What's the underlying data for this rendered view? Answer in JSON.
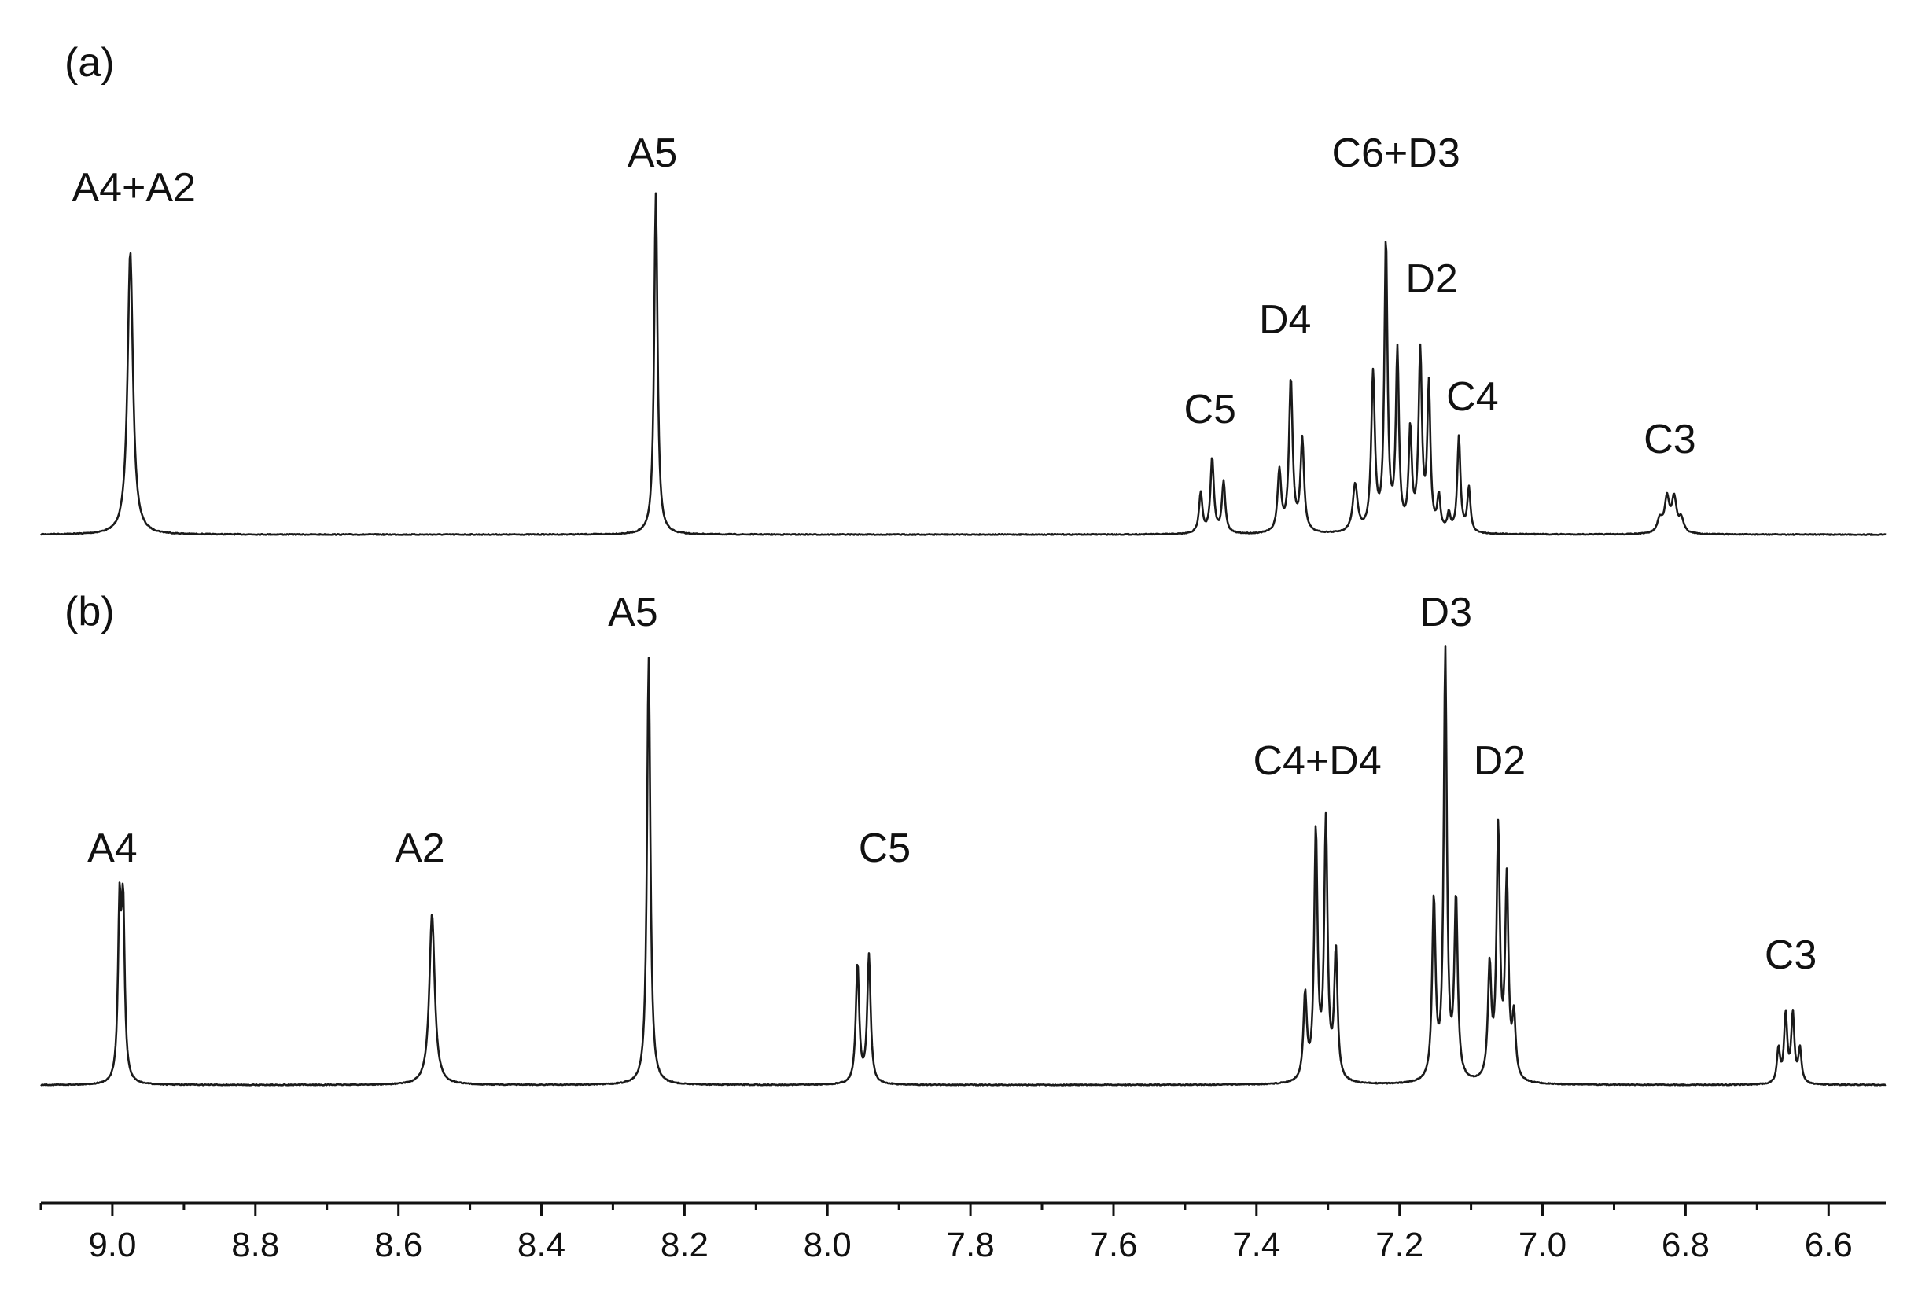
{
  "chart_data": {
    "type": "line",
    "x_unit": "ppm",
    "x_range": [
      9.1,
      6.52
    ],
    "x_reversed": true,
    "grid": false,
    "x_ticks": [
      9.0,
      8.8,
      8.6,
      8.4,
      8.2,
      8.0,
      7.8,
      7.6,
      7.4,
      7.2,
      7.0,
      6.8,
      6.6
    ],
    "x_tick_labels": [
      "9.0",
      "8.8",
      "8.6",
      "8.4",
      "8.2",
      "8.0",
      "7.8",
      "7.6",
      "7.4",
      "7.2",
      "7.0",
      "6.8",
      "6.6"
    ],
    "panels": [
      {
        "tag": "(a)",
        "peaks": [
          {
            "ppm": 8.975,
            "intensity": 0.83,
            "width": 0.0045
          },
          {
            "ppm": 8.24,
            "intensity": 1.0,
            "width": 0.0028
          },
          {
            "ppm": 7.478,
            "intensity": 0.12,
            "width": 0.0028
          },
          {
            "ppm": 7.462,
            "intensity": 0.22,
            "width": 0.0028
          },
          {
            "ppm": 7.446,
            "intensity": 0.15,
            "width": 0.0028
          },
          {
            "ppm": 7.368,
            "intensity": 0.18,
            "width": 0.003
          },
          {
            "ppm": 7.352,
            "intensity": 0.45,
            "width": 0.003
          },
          {
            "ppm": 7.336,
            "intensity": 0.27,
            "width": 0.003
          },
          {
            "ppm": 7.262,
            "intensity": 0.14,
            "width": 0.004
          },
          {
            "ppm": 7.237,
            "intensity": 0.46,
            "width": 0.003
          },
          {
            "ppm": 7.219,
            "intensity": 0.85,
            "width": 0.0026
          },
          {
            "ppm": 7.203,
            "intensity": 0.52,
            "width": 0.0026
          },
          {
            "ppm": 7.185,
            "intensity": 0.29,
            "width": 0.0026
          },
          {
            "ppm": 7.171,
            "intensity": 0.52,
            "width": 0.0028
          },
          {
            "ppm": 7.159,
            "intensity": 0.42,
            "width": 0.0026
          },
          {
            "ppm": 7.145,
            "intensity": 0.1,
            "width": 0.0026
          },
          {
            "ppm": 7.131,
            "intensity": 0.05,
            "width": 0.0026
          },
          {
            "ppm": 7.117,
            "intensity": 0.28,
            "width": 0.0026
          },
          {
            "ppm": 7.103,
            "intensity": 0.13,
            "width": 0.0026
          },
          {
            "ppm": 6.836,
            "intensity": 0.04,
            "width": 0.004
          },
          {
            "ppm": 6.826,
            "intensity": 0.1,
            "width": 0.004
          },
          {
            "ppm": 6.816,
            "intensity": 0.1,
            "width": 0.004
          },
          {
            "ppm": 6.806,
            "intensity": 0.04,
            "width": 0.004
          }
        ],
        "labels": [
          {
            "text": "A4+A2",
            "ppm": 8.97
          },
          {
            "text": "A5",
            "ppm": 8.245
          },
          {
            "text": "C6+D3",
            "ppm": 7.205
          },
          {
            "text": "D4",
            "ppm": 7.36
          },
          {
            "text": "D2",
            "ppm": 7.155
          },
          {
            "text": "C5",
            "ppm": 7.465
          },
          {
            "text": "C4",
            "ppm": 7.098
          },
          {
            "text": "C3",
            "ppm": 6.822
          }
        ]
      },
      {
        "tag": "(b)",
        "peaks": [
          {
            "ppm": 8.99,
            "intensity": 0.39,
            "width": 0.0026
          },
          {
            "ppm": 8.985,
            "intensity": 0.39,
            "width": 0.0026
          },
          {
            "ppm": 8.553,
            "intensity": 0.4,
            "width": 0.0045
          },
          {
            "ppm": 8.25,
            "intensity": 1.0,
            "width": 0.0028
          },
          {
            "ppm": 7.958,
            "intensity": 0.28,
            "width": 0.0028
          },
          {
            "ppm": 7.942,
            "intensity": 0.3,
            "width": 0.0028
          },
          {
            "ppm": 7.332,
            "intensity": 0.2,
            "width": 0.0028
          },
          {
            "ppm": 7.317,
            "intensity": 0.58,
            "width": 0.0028
          },
          {
            "ppm": 7.303,
            "intensity": 0.6,
            "width": 0.0028
          },
          {
            "ppm": 7.289,
            "intensity": 0.3,
            "width": 0.0028
          },
          {
            "ppm": 7.152,
            "intensity": 0.42,
            "width": 0.0028
          },
          {
            "ppm": 7.136,
            "intensity": 1.0,
            "width": 0.0026
          },
          {
            "ppm": 7.121,
            "intensity": 0.42,
            "width": 0.0028
          },
          {
            "ppm": 7.074,
            "intensity": 0.26,
            "width": 0.0028
          },
          {
            "ppm": 7.062,
            "intensity": 0.58,
            "width": 0.0028
          },
          {
            "ppm": 7.05,
            "intensity": 0.46,
            "width": 0.0028
          },
          {
            "ppm": 7.04,
            "intensity": 0.14,
            "width": 0.0028
          },
          {
            "ppm": 6.67,
            "intensity": 0.08,
            "width": 0.0026
          },
          {
            "ppm": 6.66,
            "intensity": 0.16,
            "width": 0.0026
          },
          {
            "ppm": 6.65,
            "intensity": 0.16,
            "width": 0.0026
          },
          {
            "ppm": 6.64,
            "intensity": 0.08,
            "width": 0.0026
          }
        ],
        "labels": [
          {
            "text": "A4",
            "ppm": 9.0
          },
          {
            "text": "A2",
            "ppm": 8.57
          },
          {
            "text": "A5",
            "ppm": 8.272
          },
          {
            "text": "C5",
            "ppm": 7.92
          },
          {
            "text": "C4+D4",
            "ppm": 7.315
          },
          {
            "text": "D3",
            "ppm": 7.135
          },
          {
            "text": "D2",
            "ppm": 7.06
          },
          {
            "text": "C3",
            "ppm": 6.653
          }
        ]
      }
    ]
  }
}
